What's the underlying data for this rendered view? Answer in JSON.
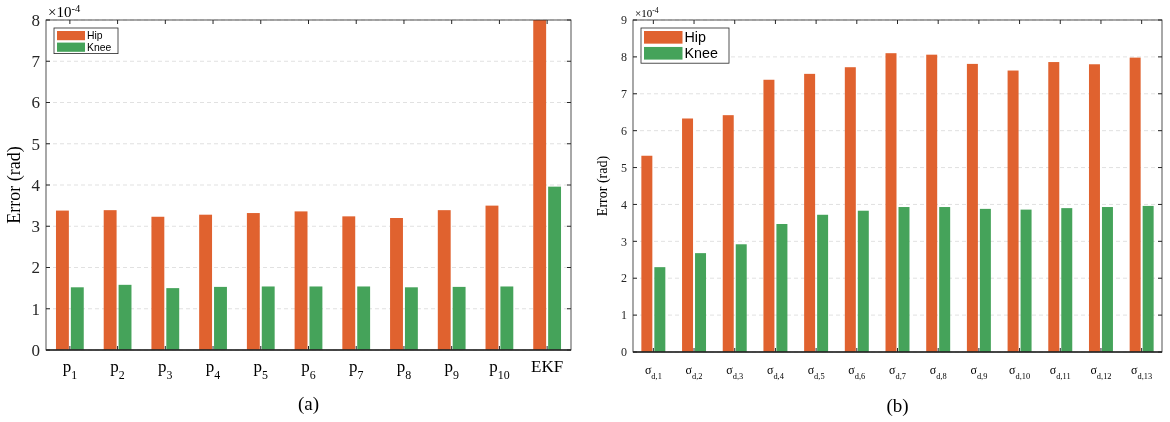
{
  "chart_data": [
    {
      "type": "bar",
      "title": "(a)",
      "ylabel": "Error (rad)",
      "annotations": [
        "×10$^{-4}$"
      ],
      "categories": [
        "p$_{1}$",
        "p$_{2}$",
        "p$_{3}$",
        "p$_{4}$",
        "p$_{5}$",
        "p$_{6}$",
        "p$_{7}$",
        "p$_{8}$",
        "p$_{9}$",
        "p$_{10}$",
        "EKF"
      ],
      "series": [
        {
          "name": "Hip",
          "color": "#e0622f",
          "values": [
            3.38,
            3.39,
            3.23,
            3.28,
            3.32,
            3.36,
            3.24,
            3.2,
            3.39,
            3.5,
            8
          ]
        },
        {
          "name": "Knee",
          "color": "#45a35a",
          "values": [
            1.52,
            1.58,
            1.5,
            1.53,
            1.54,
            1.54,
            1.54,
            1.52,
            1.53,
            1.54,
            3.96
          ]
        }
      ],
      "ylim": [
        0,
        8
      ],
      "yticks": [
        0,
        1,
        2,
        3,
        4,
        5,
        6,
        7,
        8
      ],
      "grid": "y",
      "legend": "top left"
    },
    {
      "type": "bar",
      "title": "(b)",
      "ylabel": "Error (rad)",
      "annotations": [
        "×10$^{-4}$"
      ],
      "categories": [
        "σ$_{d,1}$",
        "σ$_{d,2}$",
        "σ$_{d,3}$",
        "σ$_{d,4}$",
        "σ$_{d,5}$",
        "σ$_{d,6}$",
        "σ$_{d,7}$",
        "σ$_{d,8}$",
        "σ$_{d,9}$",
        "σ$_{d,10}$",
        "σ$_{d,11}$",
        "σ$_{d,12}$",
        "σ$_{d,13}$"
      ],
      "series": [
        {
          "name": "Hip",
          "color": "#e0622f",
          "values": [
            5.32,
            6.33,
            6.42,
            7.38,
            7.54,
            7.72,
            8.1,
            8.06,
            7.81,
            7.63,
            7.86,
            7.8,
            7.98
          ]
        },
        {
          "name": "Knee",
          "color": "#45a35a",
          "values": [
            2.3,
            2.68,
            2.92,
            3.47,
            3.72,
            3.83,
            3.93,
            3.93,
            3.88,
            3.86,
            3.9,
            3.93,
            3.96
          ]
        }
      ],
      "ylim": [
        0,
        9
      ],
      "yticks": [
        0,
        1,
        2,
        3,
        4,
        5,
        6,
        7,
        8,
        9
      ],
      "grid": "y",
      "legend": "top left"
    }
  ]
}
